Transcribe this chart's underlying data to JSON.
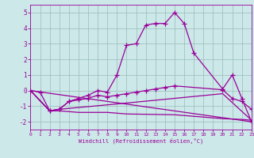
{
  "xlabel": "Windchill (Refroidissement éolien,°C)",
  "bg_color": "#cce8e8",
  "line_color": "#990099",
  "grid_color": "#99bbbb",
  "xlim": [
    0,
    23
  ],
  "ylim": [
    -2.5,
    5.5
  ],
  "yticks": [
    -2,
    -1,
    0,
    1,
    2,
    3,
    4,
    5
  ],
  "xticks": [
    0,
    1,
    2,
    3,
    4,
    5,
    6,
    7,
    8,
    9,
    10,
    11,
    12,
    13,
    14,
    15,
    16,
    17,
    18,
    19,
    20,
    21,
    22,
    23
  ],
  "curve1_x": [
    0,
    1,
    2,
    3,
    4,
    5,
    6,
    7,
    8,
    9,
    10,
    11,
    12,
    13,
    14,
    15,
    16,
    17,
    20,
    21,
    22,
    23
  ],
  "curve1_y": [
    0,
    -0.1,
    -1.3,
    -1.2,
    -0.7,
    -0.5,
    -0.3,
    0.0,
    -0.1,
    1.0,
    2.9,
    3.0,
    4.2,
    4.3,
    4.3,
    5.0,
    4.3,
    2.4,
    0.1,
    1.0,
    -0.5,
    -2.0
  ],
  "curve1_markers": true,
  "curve2_x": [
    0,
    2,
    3,
    4,
    5,
    6,
    7,
    8,
    9,
    10,
    11,
    12,
    13,
    14,
    15,
    20,
    21,
    22,
    23
  ],
  "curve2_y": [
    0,
    -1.3,
    -1.2,
    -0.7,
    -0.6,
    -0.5,
    -0.3,
    -0.4,
    -0.3,
    -0.2,
    -0.1,
    0.0,
    0.1,
    0.2,
    0.3,
    0.05,
    -0.5,
    -0.7,
    -1.2
  ],
  "curve2_markers": true,
  "curve3_x": [
    0,
    2,
    3,
    5,
    8,
    10,
    15,
    20,
    22,
    23
  ],
  "curve3_y": [
    0,
    -1.3,
    -1.3,
    -1.4,
    -1.4,
    -1.5,
    -1.55,
    -1.8,
    -1.85,
    -1.9
  ],
  "curve3_markers": false,
  "curve4_x": [
    0,
    23
  ],
  "curve4_y": [
    0,
    -2.0
  ],
  "curve4_markers": false,
  "curve5_x": [
    0,
    2,
    3,
    10,
    15,
    20,
    23
  ],
  "curve5_y": [
    0,
    -1.3,
    -1.2,
    -0.8,
    -0.5,
    -0.2,
    -1.9
  ],
  "curve5_markers": false
}
